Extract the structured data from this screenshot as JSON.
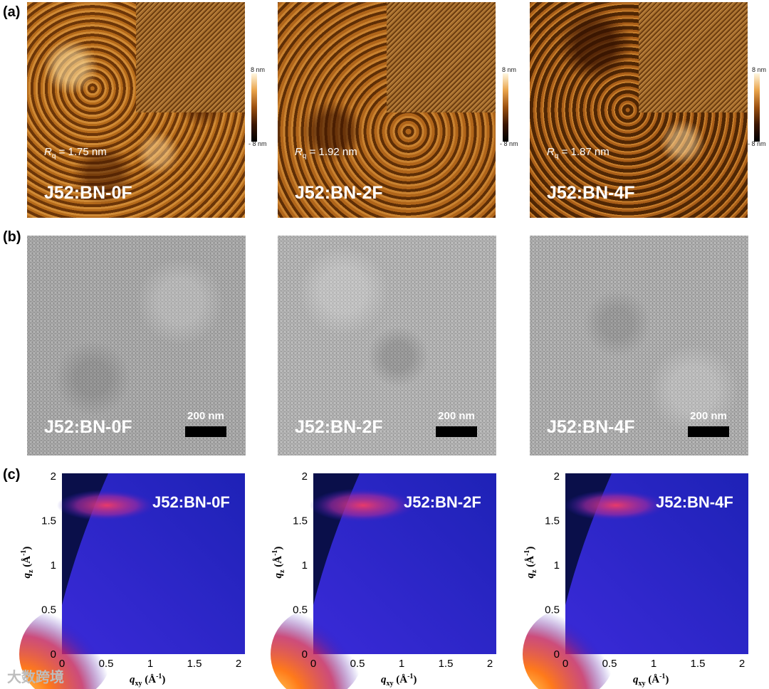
{
  "row_labels": {
    "a": "(a)",
    "b": "(b)",
    "c": "(c)"
  },
  "afm": [
    {
      "name": "J52:BN-0F",
      "rq_symbol": "R",
      "rq_sub": "q",
      "rq_value": " = 1.75 nm"
    },
    {
      "name": "J52:BN-2F",
      "rq_symbol": "R",
      "rq_sub": "q",
      "rq_value": " = 1.92 nm"
    },
    {
      "name": "J52:BN-4F",
      "rq_symbol": "R",
      "rq_sub": "q",
      "rq_value": " = 1.87 nm"
    }
  ],
  "colorbar": {
    "top": "8 nm",
    "bottom": "- 8 nm"
  },
  "tem": [
    {
      "name": "J52:BN-0F",
      "scale": "200 nm"
    },
    {
      "name": "J52:BN-2F",
      "scale": "200 nm"
    },
    {
      "name": "J52:BN-4F",
      "scale": "200 nm"
    }
  ],
  "giwaxs": {
    "names": [
      "J52:BN-0F",
      "J52:BN-2F",
      "J52:BN-4F"
    ],
    "x_label_main": "q",
    "x_label_sub": "xy",
    "x_label_unit": " (Å",
    "y_label_main": "q",
    "y_label_sub": "z",
    "unit_exp": "-1",
    "unit_close": ")",
    "x_ticks": [
      "0",
      "0.5",
      "1",
      "1.5",
      "2"
    ],
    "y_ticks": [
      "0",
      "0.5",
      "1",
      "1.5",
      "2"
    ]
  },
  "watermark": "大数跨境"
}
